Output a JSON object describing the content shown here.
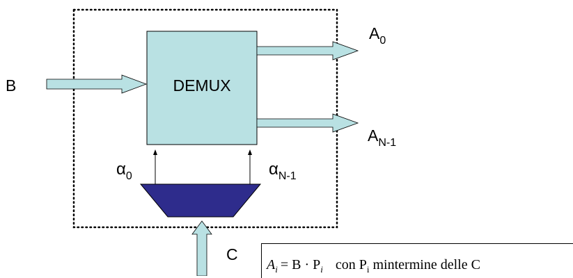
{
  "block": {
    "label": "DEMUX"
  },
  "input": {
    "label": "B"
  },
  "outputs": [
    {
      "base": "A",
      "sub": "0"
    },
    {
      "base": "A",
      "sub": "N-1"
    }
  ],
  "selects": [
    {
      "base": "α",
      "sub": "0"
    },
    {
      "base": "α",
      "sub": "N-1"
    }
  ],
  "control": {
    "label": "C"
  },
  "formula": {
    "lhs": "A",
    "lhs_sub": "i",
    "rhs": "= B · P",
    "rhs_sub": "i",
    "note": "con P",
    "note_sub": "i",
    "note_tail": " mintermine delle C"
  },
  "colors": {
    "block_fill": "#b9e1e3",
    "decoder_fill": "#2e2c8c",
    "arrow_fill": "#b9e1e3",
    "stroke": "#000000"
  }
}
